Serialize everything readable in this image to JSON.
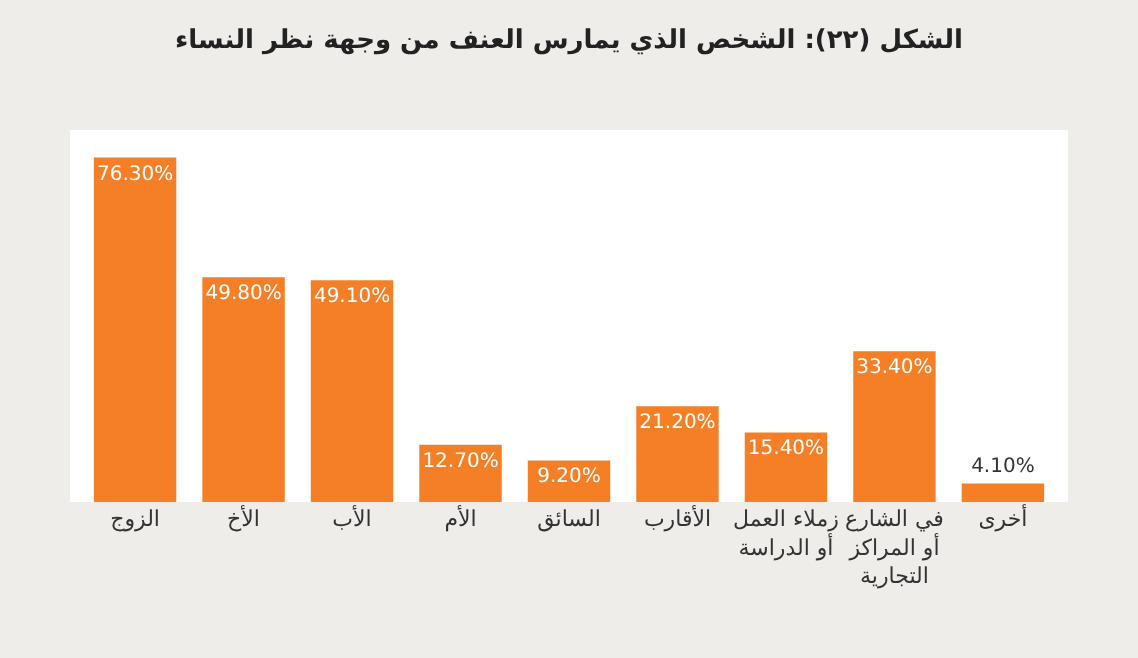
{
  "chart_data": {
    "type": "bar",
    "title": "الشكل (٢٢): الشخص الذي يمارس العنف من وجهة نظر النساء",
    "categories": [
      "الزوج",
      "الأخ",
      "الأب",
      "الأم",
      "السائق",
      "الأقارب",
      "زملاء العمل\nأو الدراسة",
      "في الشارع\nأو المراكز\nالتجارية",
      "أخرى"
    ],
    "values": [
      76.3,
      49.8,
      49.1,
      12.7,
      9.2,
      21.2,
      15.4,
      33.4,
      4.1
    ],
    "value_labels": [
      "76.30%",
      "49.80%",
      "49.10%",
      "12.70%",
      "9.20%",
      "21.20%",
      "15.40%",
      "33.40%",
      "4.10%"
    ],
    "color": "#f47f26"
  }
}
